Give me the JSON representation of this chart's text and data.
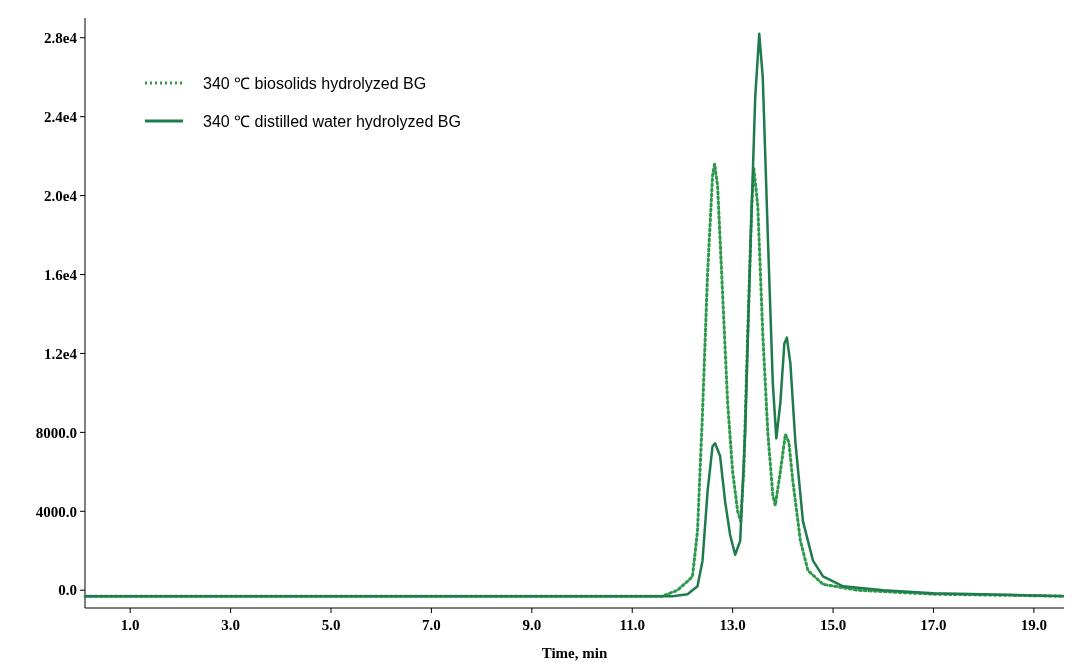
{
  "chart_data": {
    "type": "line",
    "xlabel": "Time, min",
    "xlim": [
      0.1,
      19.6
    ],
    "ylim": [
      -900,
      29000
    ],
    "xticks": [
      {
        "value": 1,
        "label": "1.0"
      },
      {
        "value": 3,
        "label": "3.0"
      },
      {
        "value": 5,
        "label": "5.0"
      },
      {
        "value": 7,
        "label": "7.0"
      },
      {
        "value": 9,
        "label": "9.0"
      },
      {
        "value": 11,
        "label": "11.0"
      },
      {
        "value": 13,
        "label": "13.0"
      },
      {
        "value": 15,
        "label": "15.0"
      },
      {
        "value": 17,
        "label": "17.0"
      },
      {
        "value": 19,
        "label": "19.0"
      }
    ],
    "yticks": [
      {
        "value": 0,
        "label": "0.0"
      },
      {
        "value": 4000,
        "label": "4000.0"
      },
      {
        "value": 8000,
        "label": "8000.0"
      },
      {
        "value": 12000,
        "label": "1.2e4"
      },
      {
        "value": 16000,
        "label": "1.6e4"
      },
      {
        "value": 20000,
        "label": "2.0e4"
      },
      {
        "value": 24000,
        "label": "2.4e4"
      },
      {
        "value": 28000,
        "label": "2.8e4"
      }
    ],
    "legend": "top left",
    "grid": false,
    "series": [
      {
        "name": "340 ℃ biosolids hydrolyzed BG",
        "color": "#2e9a4e",
        "line_style": "dotted",
        "x": [
          0.1,
          11.6,
          11.9,
          12.1,
          12.2,
          12.3,
          12.4,
          12.5,
          12.6,
          12.64,
          12.7,
          12.8,
          12.9,
          13.0,
          13.1,
          13.16,
          13.22,
          13.3,
          13.38,
          13.42,
          13.5,
          13.6,
          13.7,
          13.8,
          13.85,
          13.95,
          14.05,
          14.12,
          14.2,
          14.35,
          14.5,
          14.8,
          15.5,
          17.0,
          19.6
        ],
        "values": [
          -300,
          -300,
          0,
          450,
          700,
          3000,
          9000,
          16000,
          21000,
          21600,
          20500,
          15000,
          9500,
          6000,
          4000,
          3500,
          6000,
          13000,
          19500,
          21400,
          19500,
          13000,
          8000,
          4800,
          4300,
          6000,
          7900,
          7500,
          5500,
          2500,
          1000,
          300,
          0,
          -200,
          -300
        ]
      },
      {
        "name": "340 ℃ distilled water hydrolyzed BG",
        "color": "#1f7a4c",
        "line_style": "solid",
        "x": [
          0.1,
          11.8,
          12.1,
          12.3,
          12.4,
          12.5,
          12.6,
          12.65,
          12.75,
          12.85,
          12.95,
          13.05,
          13.15,
          13.25,
          13.35,
          13.45,
          13.53,
          13.6,
          13.7,
          13.8,
          13.87,
          13.95,
          14.03,
          14.08,
          14.15,
          14.25,
          14.4,
          14.6,
          14.8,
          15.2,
          16.0,
          17.0,
          19.6
        ],
        "values": [
          -300,
          -300,
          -200,
          200,
          1500,
          5000,
          7300,
          7450,
          6800,
          4500,
          2800,
          1800,
          2500,
          8000,
          17000,
          25000,
          28200,
          26000,
          18000,
          10500,
          7700,
          9500,
          12500,
          12800,
          11500,
          7500,
          3500,
          1500,
          700,
          200,
          0,
          -150,
          -300
        ]
      }
    ]
  }
}
